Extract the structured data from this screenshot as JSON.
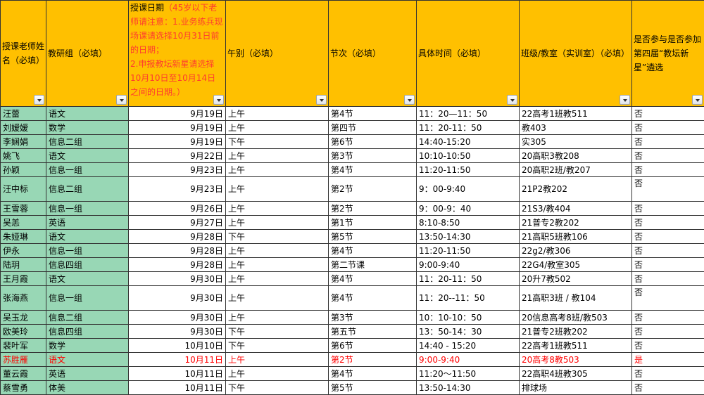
{
  "headers": [
    {
      "text": "授课老师姓名（必填）"
    },
    {
      "text": "教研组（必填）"
    },
    {
      "text": "授课日期",
      "note": "（45岁以下老师请注意：1.业务练兵现场课请选择10月31日前的日期；\n2.申报教坛新星请选择10月10日至10月14日之间的日期。）"
    },
    {
      "text": "午别（必填）"
    },
    {
      "text": "节次（必填）"
    },
    {
      "text": "具体时间（必填）"
    },
    {
      "text": "班级/教室（实训室）（必填）"
    },
    {
      "text": "是否参与是否参加第四届“教坛新星”遴选"
    }
  ],
  "rows": [
    [
      "汪蕾",
      "语文",
      "9月19日",
      "上午",
      "第4节",
      "11：20—11：50",
      "22高考1班教511",
      "否"
    ],
    [
      "刘嫒嫒",
      "数学",
      "9月19日",
      "上午",
      "第四节",
      "11：20-11：50",
      "教403",
      "否"
    ],
    [
      "李娴娟",
      "信息二组",
      "9月19日",
      "下午",
      "第6节",
      "14:40-15:20",
      "实305",
      "否"
    ],
    [
      "姚飞",
      "语文",
      "9月22日",
      "上午",
      "第3节",
      "10:10-10:50",
      "20高职3教208",
      "否"
    ],
    [
      "孙颖",
      "信息一组",
      "9月23日",
      "上午",
      "第4节",
      "11:20-11:50",
      "20高职2班/教207",
      "否"
    ],
    [
      "汪中标",
      "信息二组",
      "9月23日",
      "上午",
      "第2节",
      "9：00-9:40",
      "21P2教202",
      "否"
    ],
    [
      "王雪蓉",
      "信息一组",
      "9月26日",
      "上午",
      "第2节",
      "9：00-9：40",
      "21S3/教404",
      "否"
    ],
    [
      "吴恙",
      "英语",
      "9月27日",
      "上午",
      "第1节",
      "8:10-8:50",
      "21普专2教202",
      "否"
    ],
    [
      "朱娅琳",
      "语文",
      "9月28日",
      "下午",
      "第5节",
      "13:50-14:30",
      "21高职5班教106",
      "否"
    ],
    [
      "伊永",
      "信息一组",
      "9月28日",
      "上午",
      "第4节",
      "11:20-11:50",
      "22g2/教306",
      "否"
    ],
    [
      "陆玥",
      "信息四组",
      "9月28日",
      "上午",
      "第二节课",
      "9:00-9:40",
      "22G4/教室305",
      "否"
    ],
    [
      "王月霞",
      "语文",
      "9月30日",
      "上午",
      "第4节",
      "11：20-11：50",
      "20升7教502",
      "否"
    ],
    [
      "张海燕",
      "信息一组",
      "9月30日",
      "上午",
      "第4节",
      "11：20--11：50",
      "21高职3班 / 教104",
      "否"
    ],
    [
      "吴玉龙",
      "信息二组",
      "9月30日",
      "上午",
      "第3节",
      "10：10-10：50",
      "20信息高考8班/教503",
      "否"
    ],
    [
      "欧美玲",
      "信息四组",
      "9月30日",
      "下午",
      "第五节",
      "13：50-14：30",
      "21普专2班教202",
      "否"
    ],
    [
      "裴叶军",
      "数学",
      "10月10日",
      "下午",
      "第6节",
      "14:40 - 15:20",
      "22高考1班教511",
      "否"
    ],
    [
      "苏胜雁",
      "语文",
      "10月11日",
      "上午",
      "第2节",
      "9:00-9:40",
      "20高考8教503",
      "是"
    ],
    [
      "董云霞",
      "英语",
      "10月11日",
      "上午",
      "第4节",
      "11:20～11:50",
      "22高职4班教305",
      "否"
    ],
    [
      "蔡雪勇",
      "体美",
      "10月11日",
      "下午",
      "第5节",
      "13:50-14:30",
      "排球场",
      "否"
    ]
  ],
  "tall_rows": [
    5,
    12
  ],
  "highlight_row": 16,
  "colors": {
    "header": "#FFC000",
    "name_cols": "#98D7B5",
    "highlight": "#FF0000",
    "note": "#FF3B2F"
  }
}
